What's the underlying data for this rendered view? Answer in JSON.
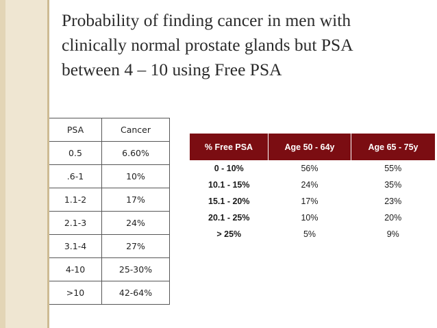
{
  "title_lines": [
    "Probability of finding cancer in men with",
    "clinically normal prostate glands but PSA",
    "between 4 – 10 using Free PSA"
  ],
  "psa_table": {
    "headers": [
      "PSA",
      "Cancer"
    ],
    "rows": [
      [
        "0.5",
        "6.60%"
      ],
      [
        ".6-1",
        "10%"
      ],
      [
        "1.1-2",
        "17%"
      ],
      [
        "2.1-3",
        "24%"
      ],
      [
        "3.1-4",
        "27%"
      ],
      [
        "4-10",
        "25-30%"
      ],
      [
        ">10",
        "42-64%"
      ]
    ]
  },
  "free_psa_table": {
    "headers": [
      "% Free PSA",
      "Age 50 - 64y",
      "Age 65 - 75y"
    ],
    "rows": [
      [
        "0 - 10%",
        "56%",
        "55%"
      ],
      [
        "10.1 - 15%",
        "24%",
        "35%"
      ],
      [
        "15.1 - 20%",
        "17%",
        "23%"
      ],
      [
        "20.1 - 25%",
        "10%",
        "20%"
      ],
      [
        "> 25%",
        "5%",
        "9%"
      ]
    ],
    "header_color": "#7b0d12"
  }
}
